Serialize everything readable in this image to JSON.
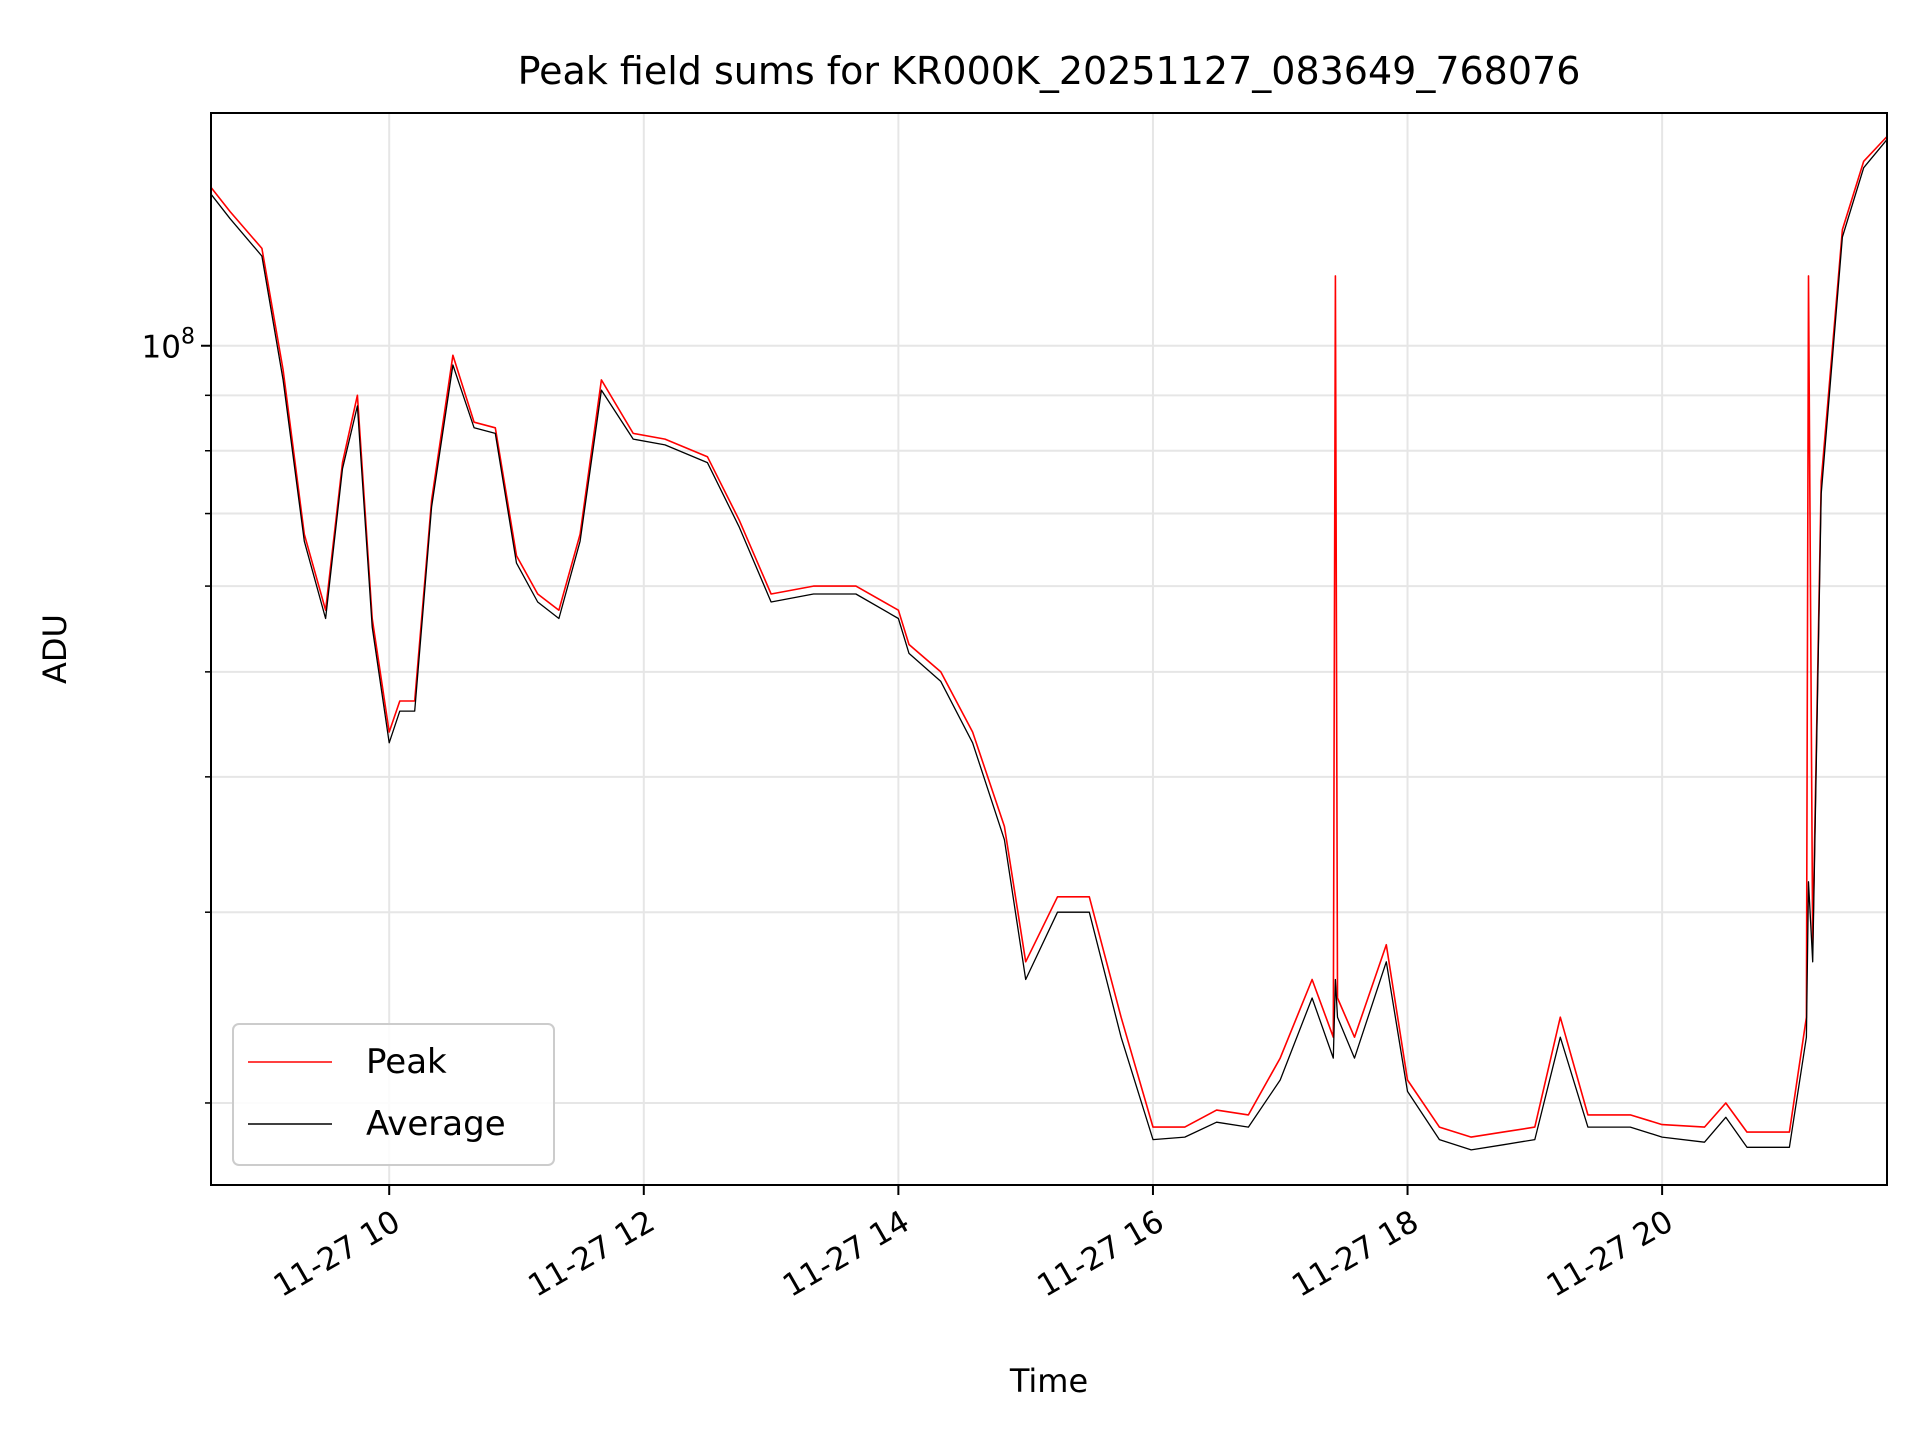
{
  "chart_data": {
    "type": "line",
    "title": "Peak field sums for KR000K_20251127_083649_768076",
    "xlabel": "Time",
    "ylabel": "ADU",
    "y_scale": "log",
    "xlim": [
      "2025-11-27 08:36",
      "2025-11-27 21:46"
    ],
    "ylim": [
      16800000,
      164000000
    ],
    "x_ticks": [
      {
        "value": "2025-11-27 10:00",
        "label": "11-27 10"
      },
      {
        "value": "2025-11-27 12:00",
        "label": "11-27 12"
      },
      {
        "value": "2025-11-27 14:00",
        "label": "11-27 14"
      },
      {
        "value": "2025-11-27 16:00",
        "label": "11-27 16"
      },
      {
        "value": "2025-11-27 18:00",
        "label": "11-27 18"
      },
      {
        "value": "2025-11-27 20:00",
        "label": "11-27 20"
      }
    ],
    "y_major_ticks": [
      {
        "value": 100000000,
        "label_base": "10",
        "label_exp": "8"
      }
    ],
    "y_minor_ticks": [
      20000000,
      30000000,
      40000000,
      50000000,
      60000000,
      70000000,
      80000000,
      90000000
    ],
    "grid": true,
    "legend_position": "lower-left",
    "series": [
      {
        "name": "Peak",
        "color": "#ff0000",
        "x": [
          "2025-11-27 08:36",
          "2025-11-27 08:45",
          "2025-11-27 09:00",
          "2025-11-27 09:10",
          "2025-11-27 09:20",
          "2025-11-27 09:30",
          "2025-11-27 09:38",
          "2025-11-27 09:45",
          "2025-11-27 09:52",
          "2025-11-27 10:00",
          "2025-11-27 10:05",
          "2025-11-27 10:12",
          "2025-11-27 10:20",
          "2025-11-27 10:30",
          "2025-11-27 10:40",
          "2025-11-27 10:50",
          "2025-11-27 11:00",
          "2025-11-27 11:10",
          "2025-11-27 11:20",
          "2025-11-27 11:30",
          "2025-11-27 11:40",
          "2025-11-27 11:55",
          "2025-11-27 12:10",
          "2025-11-27 12:30",
          "2025-11-27 12:45",
          "2025-11-27 13:00",
          "2025-11-27 13:20",
          "2025-11-27 13:40",
          "2025-11-27 14:00",
          "2025-11-27 14:05",
          "2025-11-27 14:20",
          "2025-11-27 14:35",
          "2025-11-27 14:50",
          "2025-11-27 15:00",
          "2025-11-27 15:15",
          "2025-11-27 15:30",
          "2025-11-27 15:45",
          "2025-11-27 16:00",
          "2025-11-27 16:15",
          "2025-11-27 16:30",
          "2025-11-27 16:45",
          "2025-11-27 17:00",
          "2025-11-27 17:15",
          "2025-11-27 17:25",
          "2025-11-27 17:26",
          "2025-11-27 17:27",
          "2025-11-27 17:35",
          "2025-11-27 17:50",
          "2025-11-27 18:00",
          "2025-11-27 18:15",
          "2025-11-27 18:30",
          "2025-11-27 18:45",
          "2025-11-27 19:00",
          "2025-11-27 19:12",
          "2025-11-27 19:25",
          "2025-11-27 19:45",
          "2025-11-27 20:00",
          "2025-11-27 20:20",
          "2025-11-27 20:30",
          "2025-11-27 20:40",
          "2025-11-27 21:00",
          "2025-11-27 21:08",
          "2025-11-27 21:09",
          "2025-11-27 21:11",
          "2025-11-27 21:15",
          "2025-11-27 21:25",
          "2025-11-27 21:35",
          "2025-11-27 21:46"
        ],
        "y": [
          140000000,
          133000000,
          123000000,
          95000000,
          67000000,
          57000000,
          78000000,
          90000000,
          56000000,
          44000000,
          47000000,
          47000000,
          72000000,
          98000000,
          85000000,
          84000000,
          64000000,
          59000000,
          57000000,
          67000000,
          93000000,
          83000000,
          82000000,
          79000000,
          69000000,
          59000000,
          60000000,
          60000000,
          57000000,
          53000000,
          50000000,
          44000000,
          36000000,
          27000000,
          31000000,
          31000000,
          24000000,
          19000000,
          19000000,
          19700000,
          19500000,
          22000000,
          26000000,
          23000000,
          116000000,
          25000000,
          23000000,
          28000000,
          21000000,
          19000000,
          18600000,
          18800000,
          19000000,
          24000000,
          19500000,
          19500000,
          19100000,
          19000000,
          20000000,
          18800000,
          18800000,
          24000000,
          116000000,
          28000000,
          75000000,
          128000000,
          148000000,
          156000000
        ]
      },
      {
        "name": "Average",
        "color": "#000000",
        "x": [
          "2025-11-27 08:36",
          "2025-11-27 08:45",
          "2025-11-27 09:00",
          "2025-11-27 09:10",
          "2025-11-27 09:20",
          "2025-11-27 09:30",
          "2025-11-27 09:38",
          "2025-11-27 09:45",
          "2025-11-27 09:52",
          "2025-11-27 10:00",
          "2025-11-27 10:05",
          "2025-11-27 10:12",
          "2025-11-27 10:20",
          "2025-11-27 10:30",
          "2025-11-27 10:40",
          "2025-11-27 10:50",
          "2025-11-27 11:00",
          "2025-11-27 11:10",
          "2025-11-27 11:20",
          "2025-11-27 11:30",
          "2025-11-27 11:40",
          "2025-11-27 11:55",
          "2025-11-27 12:10",
          "2025-11-27 12:30",
          "2025-11-27 12:45",
          "2025-11-27 13:00",
          "2025-11-27 13:20",
          "2025-11-27 13:40",
          "2025-11-27 14:00",
          "2025-11-27 14:05",
          "2025-11-27 14:20",
          "2025-11-27 14:35",
          "2025-11-27 14:50",
          "2025-11-27 15:00",
          "2025-11-27 15:15",
          "2025-11-27 15:30",
          "2025-11-27 15:45",
          "2025-11-27 16:00",
          "2025-11-27 16:15",
          "2025-11-27 16:30",
          "2025-11-27 16:45",
          "2025-11-27 17:00",
          "2025-11-27 17:15",
          "2025-11-27 17:25",
          "2025-11-27 17:26",
          "2025-11-27 17:27",
          "2025-11-27 17:35",
          "2025-11-27 17:50",
          "2025-11-27 18:00",
          "2025-11-27 18:15",
          "2025-11-27 18:30",
          "2025-11-27 18:45",
          "2025-11-27 19:00",
          "2025-11-27 19:12",
          "2025-11-27 19:25",
          "2025-11-27 19:45",
          "2025-11-27 20:00",
          "2025-11-27 20:20",
          "2025-11-27 20:30",
          "2025-11-27 20:40",
          "2025-11-27 21:00",
          "2025-11-27 21:08",
          "2025-11-27 21:09",
          "2025-11-27 21:11",
          "2025-11-27 21:15",
          "2025-11-27 21:25",
          "2025-11-27 21:35",
          "2025-11-27 21:46"
        ],
        "y": [
          138000000,
          131000000,
          121000000,
          93000000,
          66000000,
          56000000,
          77000000,
          88000000,
          55000000,
          43000000,
          46000000,
          46000000,
          71000000,
          96000000,
          84000000,
          83000000,
          63000000,
          58000000,
          56000000,
          66000000,
          91000000,
          82000000,
          81000000,
          78000000,
          68000000,
          58000000,
          59000000,
          59000000,
          56000000,
          52000000,
          49000000,
          43000000,
          35000000,
          26000000,
          30000000,
          30000000,
          23000000,
          18500000,
          18600000,
          19200000,
          19000000,
          21000000,
          25000000,
          22000000,
          26000000,
          24000000,
          22000000,
          27000000,
          20500000,
          18500000,
          18100000,
          18300000,
          18500000,
          23000000,
          19000000,
          19000000,
          18600000,
          18400000,
          19400000,
          18200000,
          18200000,
          23000000,
          32000000,
          27000000,
          73000000,
          126000000,
          146000000,
          155000000
        ]
      }
    ]
  }
}
